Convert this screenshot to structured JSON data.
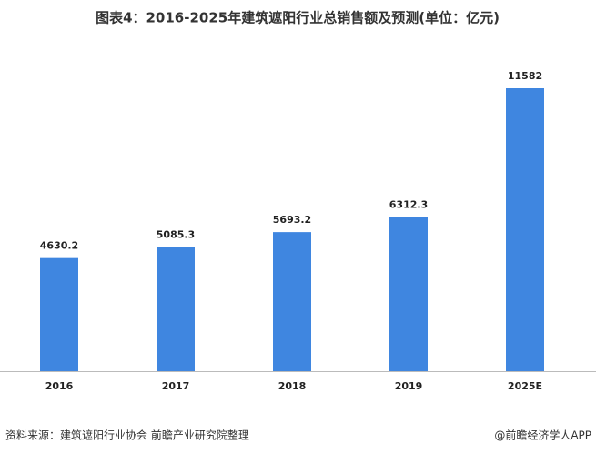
{
  "chart_data": {
    "type": "bar",
    "title": "图表4：2016-2025年建筑遮阳行业总销售额及预测(单位：亿元)",
    "categories": [
      "2016",
      "2017",
      "2018",
      "2019",
      "2025E"
    ],
    "values": [
      4630.2,
      5085.3,
      5693.2,
      6312.3,
      11582
    ],
    "color": "#3f86e0",
    "source": "资料来源：建筑遮阳行业协会 前瞻产业研究院整理",
    "credit": "@前瞻经济学人APP"
  }
}
